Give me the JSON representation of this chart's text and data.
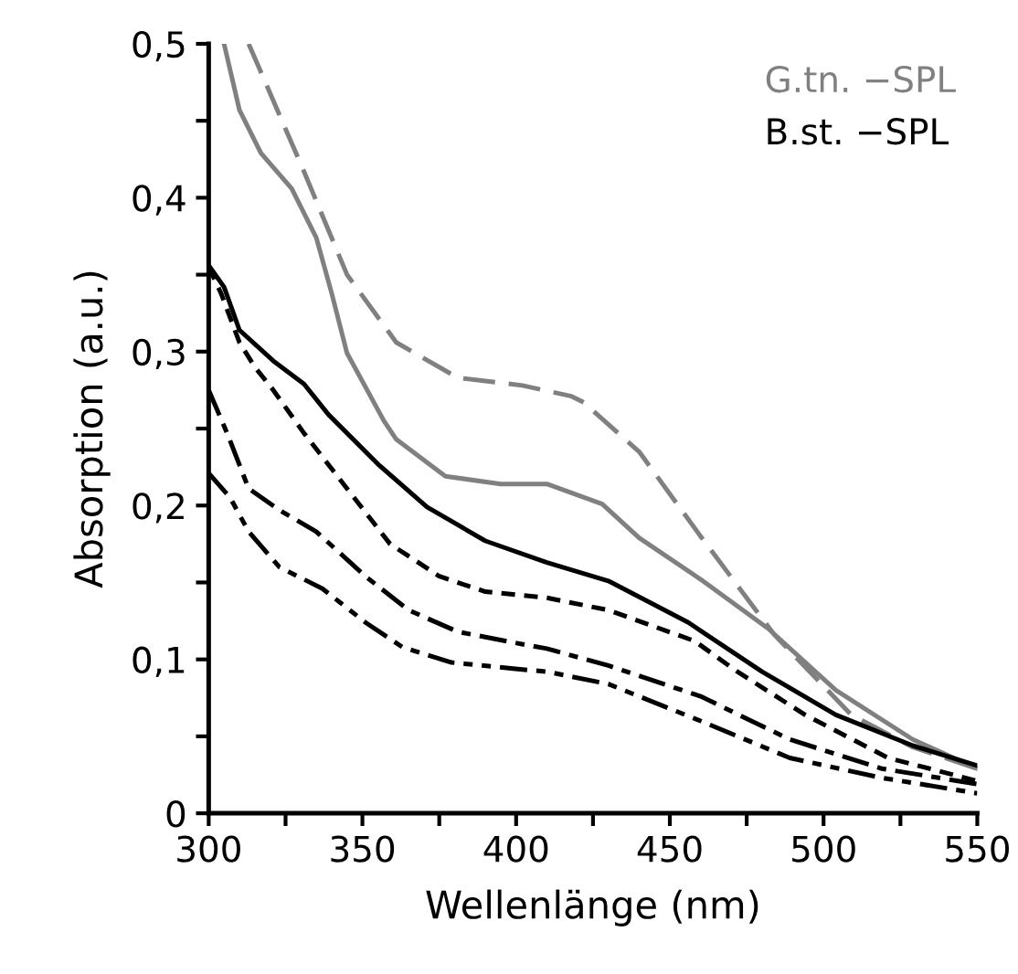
{
  "chart_data": {
    "type": "line",
    "xlabel": "Wellenlänge (nm)",
    "ylabel": "Absorption (a.u.)",
    "xlim": [
      300,
      550
    ],
    "ylim": [
      0,
      0.5
    ],
    "xticks": [
      300,
      {
        "value": 325,
        "label": null
      },
      350,
      {
        "value": 375,
        "label": null
      },
      400,
      {
        "value": 425,
        "label": null
      },
      450,
      {
        "value": 475,
        "label": null
      },
      500,
      {
        "value": 525,
        "label": null
      },
      550
    ],
    "yticks": [
      0,
      {
        "value": 0.05,
        "label": null
      },
      {
        "value": 0.1,
        "label": "0,1"
      },
      {
        "value": 0.15,
        "label": null
      },
      {
        "value": 0.2,
        "label": "0,2"
      },
      {
        "value": 0.25,
        "label": null
      },
      {
        "value": 0.3,
        "label": "0,3"
      },
      {
        "value": 0.35,
        "label": null
      },
      {
        "value": 0.4,
        "label": "0,4"
      },
      {
        "value": 0.45,
        "label": null
      },
      {
        "value": 0.5,
        "label": "0,5"
      }
    ],
    "grid": false,
    "legend": "top right",
    "marker": "none",
    "series": [
      {
        "name": "G.tn. −SPL",
        "color": "#808080",
        "line_style": "solid",
        "x": [
          305,
          310,
          317,
          327,
          335,
          340,
          345,
          357,
          361,
          377,
          395,
          410,
          428,
          440,
          460,
          482,
          504,
          529,
          550
        ],
        "values": [
          0.5,
          0.457,
          0.429,
          0.406,
          0.374,
          0.338,
          0.299,
          0.255,
          0.243,
          0.219,
          0.214,
          0.214,
          0.201,
          0.179,
          0.152,
          0.12,
          0.08,
          0.048,
          0.029
        ]
      },
      {
        "color": "#808080",
        "line_style": "dashed",
        "x": [
          313,
          331,
          345,
          361,
          381,
          402,
          418,
          422,
          440,
          460,
          484,
          509,
          529,
          550
        ],
        "values": [
          0.5,
          0.417,
          0.35,
          0.306,
          0.283,
          0.278,
          0.271,
          0.267,
          0.235,
          0.18,
          0.116,
          0.064,
          0.043,
          0.029
        ]
      },
      {
        "name": "B.st. −SPL",
        "color": "#000000",
        "line_style": "solid",
        "x": [
          300,
          305,
          310,
          321,
          331,
          339,
          355,
          371,
          390,
          410,
          430,
          456,
          480,
          504,
          529,
          550
        ],
        "values": [
          0.356,
          0.342,
          0.314,
          0.294,
          0.279,
          0.259,
          0.227,
          0.199,
          0.177,
          0.163,
          0.151,
          0.124,
          0.092,
          0.064,
          0.044,
          0.031
        ]
      },
      {
        "color": "#000000",
        "line_style": "dotted",
        "x": [
          300,
          304,
          310,
          315,
          321,
          331,
          345,
          359,
          375,
          390,
          410,
          430,
          458,
          472,
          494,
          521,
          550
        ],
        "values": [
          0.355,
          0.338,
          0.306,
          0.29,
          0.275,
          0.247,
          0.211,
          0.175,
          0.154,
          0.144,
          0.14,
          0.132,
          0.112,
          0.092,
          0.064,
          0.036,
          0.021
        ]
      },
      {
        "color": "#000000",
        "line_style": "dashdot",
        "x": [
          300,
          306,
          313,
          323,
          335,
          351,
          365,
          381,
          399,
          410,
          430,
          460,
          489,
          519,
          550
        ],
        "values": [
          0.275,
          0.247,
          0.211,
          0.197,
          0.183,
          0.154,
          0.132,
          0.118,
          0.111,
          0.107,
          0.096,
          0.076,
          0.048,
          0.029,
          0.019
        ]
      },
      {
        "color": "#000000",
        "line_style": "dashdotdot",
        "x": [
          300,
          307,
          313,
          323,
          337,
          351,
          363,
          379,
          399,
          410,
          430,
          460,
          489,
          519,
          550
        ],
        "values": [
          0.221,
          0.205,
          0.183,
          0.16,
          0.146,
          0.124,
          0.108,
          0.098,
          0.094,
          0.092,
          0.084,
          0.06,
          0.036,
          0.023,
          0.013
        ]
      }
    ]
  }
}
